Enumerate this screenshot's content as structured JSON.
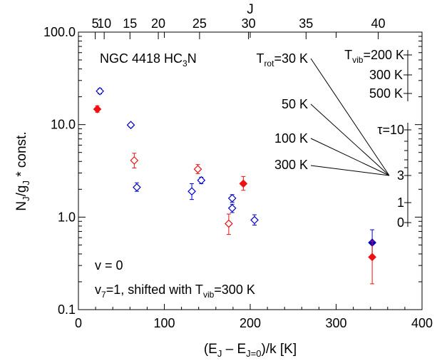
{
  "chart_data": {
    "type": "scatter",
    "title": "NGC 4418 HC",
    "title_sub": "3",
    "title_tail": "N",
    "xlabel": {
      "pre": "(E",
      "s1": "J",
      "mid": " – E",
      "s2": "J=0",
      "post": ")/k [K]"
    },
    "ylabel": {
      "a": "N",
      "s1": "J",
      "b": "/g",
      "s2": "J",
      "c": " * const."
    },
    "top_axis_label": "J",
    "xlim": [
      0,
      400
    ],
    "ylim": [
      0.1,
      100
    ],
    "y_scale": "log",
    "x_ticks": [
      {
        "value": 0,
        "label": "0"
      },
      {
        "value": 100,
        "label": "100"
      },
      {
        "value": 200,
        "label": "200"
      },
      {
        "value": 300,
        "label": "300"
      },
      {
        "value": 400,
        "label": "400"
      }
    ],
    "y_ticks": [
      {
        "value": 0.1,
        "label": "0.1"
      },
      {
        "value": 1,
        "label": "1.0"
      },
      {
        "value": 10,
        "label": "10.0"
      },
      {
        "value": 100,
        "label": "100.0"
      }
    ],
    "top_ticks": [
      {
        "energy": 19.6,
        "label": "5"
      },
      {
        "energy": 30,
        "label": "10"
      },
      {
        "energy": 60,
        "label": "15"
      },
      {
        "energy": 93,
        "label": "20"
      },
      {
        "energy": 141,
        "label": "25"
      },
      {
        "energy": 198,
        "label": "30"
      },
      {
        "energy": 265,
        "label": "35"
      },
      {
        "energy": 349,
        "label": "40"
      }
    ],
    "series": [
      {
        "name": "v = 0",
        "color": "#0000cc",
        "points": [
          {
            "x": 25,
            "y": 23,
            "lo": 21.5,
            "hi": 24.5,
            "filled": false
          },
          {
            "x": 61,
            "y": 9.9,
            "lo": 9.4,
            "hi": 10.4,
            "filled": false
          },
          {
            "x": 68,
            "y": 2.1,
            "lo": 1.9,
            "hi": 2.35,
            "filled": false
          },
          {
            "x": 132,
            "y": 1.9,
            "lo": 1.55,
            "hi": 2.3,
            "filled": false
          },
          {
            "x": 143,
            "y": 2.5,
            "lo": 2.3,
            "hi": 2.7,
            "filled": false
          },
          {
            "x": 179,
            "y": 1.6,
            "lo": 1.45,
            "hi": 1.75,
            "filled": false
          },
          {
            "x": 179,
            "y": 1.25,
            "lo": 1.12,
            "hi": 1.38,
            "filled": false
          },
          {
            "x": 205,
            "y": 0.93,
            "lo": 0.82,
            "hi": 1.06,
            "filled": false
          },
          {
            "x": 342,
            "y": 0.53,
            "lo": 0.38,
            "hi": 0.73,
            "filled": true
          }
        ]
      },
      {
        "name": "v7=1, shifted with Tvib=300 K",
        "color": "#ee1111",
        "points": [
          {
            "x": 22,
            "y": 14.7,
            "lo": 13.6,
            "hi": 16.0,
            "filled": true
          },
          {
            "x": 65,
            "y": 4.1,
            "lo": 3.4,
            "hi": 4.9,
            "filled": false
          },
          {
            "x": 139,
            "y": 3.3,
            "lo": 2.95,
            "hi": 3.7,
            "filled": false
          },
          {
            "x": 175,
            "y": 0.85,
            "lo": 0.65,
            "hi": 1.08,
            "filled": false
          },
          {
            "x": 192,
            "y": 2.3,
            "lo": 1.95,
            "hi": 2.75,
            "filled": true
          },
          {
            "x": 342,
            "y": 0.37,
            "lo": 0.19,
            "hi": 0.55,
            "filled": true
          }
        ]
      }
    ],
    "legend": [
      {
        "color": "#0000cc",
        "text": "v = 0"
      },
      {
        "color": "#ee1111",
        "a": "v",
        "s1": "7",
        "b": "=1, shifted with T",
        "s2": "vib",
        "c": "=300 K"
      }
    ],
    "annotations": {
      "trot": [
        {
          "a": "T",
          "s": "rot",
          "b": "=30 K"
        },
        {
          "a": "",
          "s": "",
          "b": "50 K"
        },
        {
          "a": "",
          "s": "",
          "b": "100 K"
        },
        {
          "a": "",
          "s": "",
          "b": "300 K"
        }
      ],
      "tvib": {
        "a": "T",
        "s": "vib",
        "b": "=200 K",
        "others": [
          "300 K",
          "500 K"
        ]
      },
      "tau": {
        "label": "τ=10",
        "ticks": [
          "3",
          "1",
          "0"
        ]
      }
    }
  }
}
